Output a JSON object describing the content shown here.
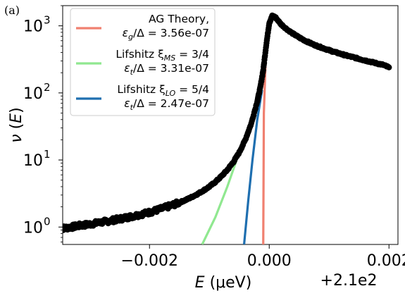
{
  "panel_label": "(a)",
  "chart_data": {
    "type": "scatter",
    "title": "",
    "xlabel": "E (μeV)",
    "ylabel": "ν (E)",
    "x_offset_label": "+2.1e2",
    "x_scale": "linear",
    "y_scale": "log",
    "xlim": [
      209.99655,
      210.00215
    ],
    "ylim": [
      0.55,
      2000
    ],
    "x_ticks": [
      {
        "value": 209.998,
        "label": "−0.002"
      },
      {
        "value": 210.0,
        "label": "0.000"
      },
      {
        "value": 210.002,
        "label": "0.002"
      }
    ],
    "y_ticks": [
      {
        "value": 1,
        "base": "10",
        "exp": "0"
      },
      {
        "value": 10,
        "base": "10",
        "exp": "1"
      },
      {
        "value": 100,
        "base": "10",
        "exp": "2"
      },
      {
        "value": 1000,
        "base": "10",
        "exp": "3"
      }
    ],
    "grid": false,
    "legend_position": "top-left",
    "legend": [
      {
        "line1": "AG Theory,",
        "line2_symbol": "ε",
        "line2_sub": "g",
        "line2_rest": "/Δ = 3.56e-07",
        "color": "#f08070"
      },
      {
        "line1": "Lifshitz ξ",
        "line1_sub": "MS",
        "line1_rest": " = 3/4",
        "line2_symbol": "ε",
        "line2_sub": "t",
        "line2_rest": "/Δ = 3.31e-07",
        "color": "#90e890"
      },
      {
        "line1": "Lifshitz ξ",
        "line1_sub": "LO",
        "line1_rest": " = 5/4",
        "line2_symbol": "ε",
        "line2_sub": "t",
        "line2_rest": "/Δ = 2.47e-07",
        "color": "#1f6fb0"
      }
    ],
    "scatter_series": {
      "color": "#000000",
      "points": [
        [
          209.9965,
          0.95
        ],
        [
          209.9966,
          0.97
        ],
        [
          209.9967,
          1.0
        ],
        [
          209.9968,
          1.04
        ],
        [
          209.9969,
          1.07
        ],
        [
          209.997,
          1.1
        ],
        [
          209.9971,
          1.14
        ],
        [
          209.9972,
          1.18
        ],
        [
          209.9973,
          1.22
        ],
        [
          209.9974,
          1.27
        ],
        [
          209.9975,
          1.32
        ],
        [
          209.9976,
          1.38
        ],
        [
          209.9977,
          1.44
        ],
        [
          209.9978,
          1.51
        ],
        [
          209.9979,
          1.58
        ],
        [
          209.998,
          1.66
        ],
        [
          209.9981,
          1.76
        ],
        [
          209.9982,
          1.87
        ],
        [
          209.9983,
          2.0
        ],
        [
          209.9984,
          2.15
        ],
        [
          209.9985,
          2.32
        ],
        [
          209.9986,
          2.52
        ],
        [
          209.9987,
          2.78
        ],
        [
          209.9988,
          3.1
        ],
        [
          209.9989,
          3.5
        ],
        [
          209.999,
          4.0
        ],
        [
          209.9991,
          4.7
        ],
        [
          209.9992,
          5.7
        ],
        [
          209.9993,
          7.1
        ],
        [
          209.9994,
          9.3
        ],
        [
          209.9995,
          13.0
        ],
        [
          209.9996,
          20.0
        ],
        [
          209.9997,
          35.0
        ],
        [
          209.9998,
          75.0
        ],
        [
          209.99985,
          120.0
        ],
        [
          209.9999,
          220.0
        ],
        [
          209.99995,
          520.0
        ],
        [
          210.0,
          1100.0
        ],
        [
          210.00005,
          1400.0
        ],
        [
          210.0001,
          1350.0
        ],
        [
          210.0002,
          1050.0
        ],
        [
          210.0003,
          880.0
        ],
        [
          210.0004,
          760.0
        ],
        [
          210.0005,
          670.0
        ],
        [
          210.0006,
          600.0
        ],
        [
          210.0007,
          545.0
        ],
        [
          210.0008,
          500.0
        ],
        [
          210.0009,
          465.0
        ],
        [
          210.001,
          432.0
        ],
        [
          210.0011,
          405.0
        ],
        [
          210.0012,
          380.0
        ],
        [
          210.0013,
          358.0
        ],
        [
          210.0014,
          340.0
        ],
        [
          210.0015,
          322.0
        ],
        [
          210.0016,
          305.0
        ],
        [
          210.0017,
          290.0
        ],
        [
          210.0018,
          275.0
        ],
        [
          210.0019,
          262.0
        ],
        [
          210.002,
          240.0
        ]
      ]
    },
    "series": [
      {
        "name": "AG Theory",
        "color": "#f08070",
        "x": [
          209.9999,
          209.99991,
          209.99994,
          209.99997,
          210.0,
          210.00003,
          210.00005,
          210.00008,
          210.00012,
          210.0002,
          210.0003,
          210.0004,
          210.0005,
          210.0006,
          210.0007,
          210.0008,
          210.0009,
          210.001,
          210.0011,
          210.0012,
          210.0013,
          210.0014,
          210.0015,
          210.0016,
          210.0017,
          210.0018,
          210.0019,
          210.002
        ],
        "y": [
          0.55,
          50.0,
          300.0,
          700.0,
          1100.0,
          1380.0,
          1450.0,
          1380.0,
          1250.0,
          1050.0,
          880.0,
          760.0,
          670.0,
          600.0,
          545.0,
          500.0,
          465.0,
          432.0,
          405.0,
          380.0,
          358.0,
          340.0,
          322.0,
          305.0,
          290.0,
          275.0,
          262.0,
          240.0
        ]
      },
      {
        "name": "Lifshitz ξMS = 3/4",
        "color": "#90e890",
        "x": [
          209.99888,
          209.9991,
          209.9993,
          209.9995,
          209.99965,
          209.9998
        ],
        "y": [
          0.55,
          1.4,
          4.0,
          13.0,
          30.0,
          68.0
        ]
      },
      {
        "name": "Lifshitz ξLO = 5/4",
        "color": "#1f6fb0",
        "x": [
          209.99958,
          209.99965,
          209.99972,
          209.9998,
          209.99988
        ],
        "y": [
          0.55,
          2.5,
          10.0,
          40.0,
          110.0
        ]
      }
    ]
  }
}
